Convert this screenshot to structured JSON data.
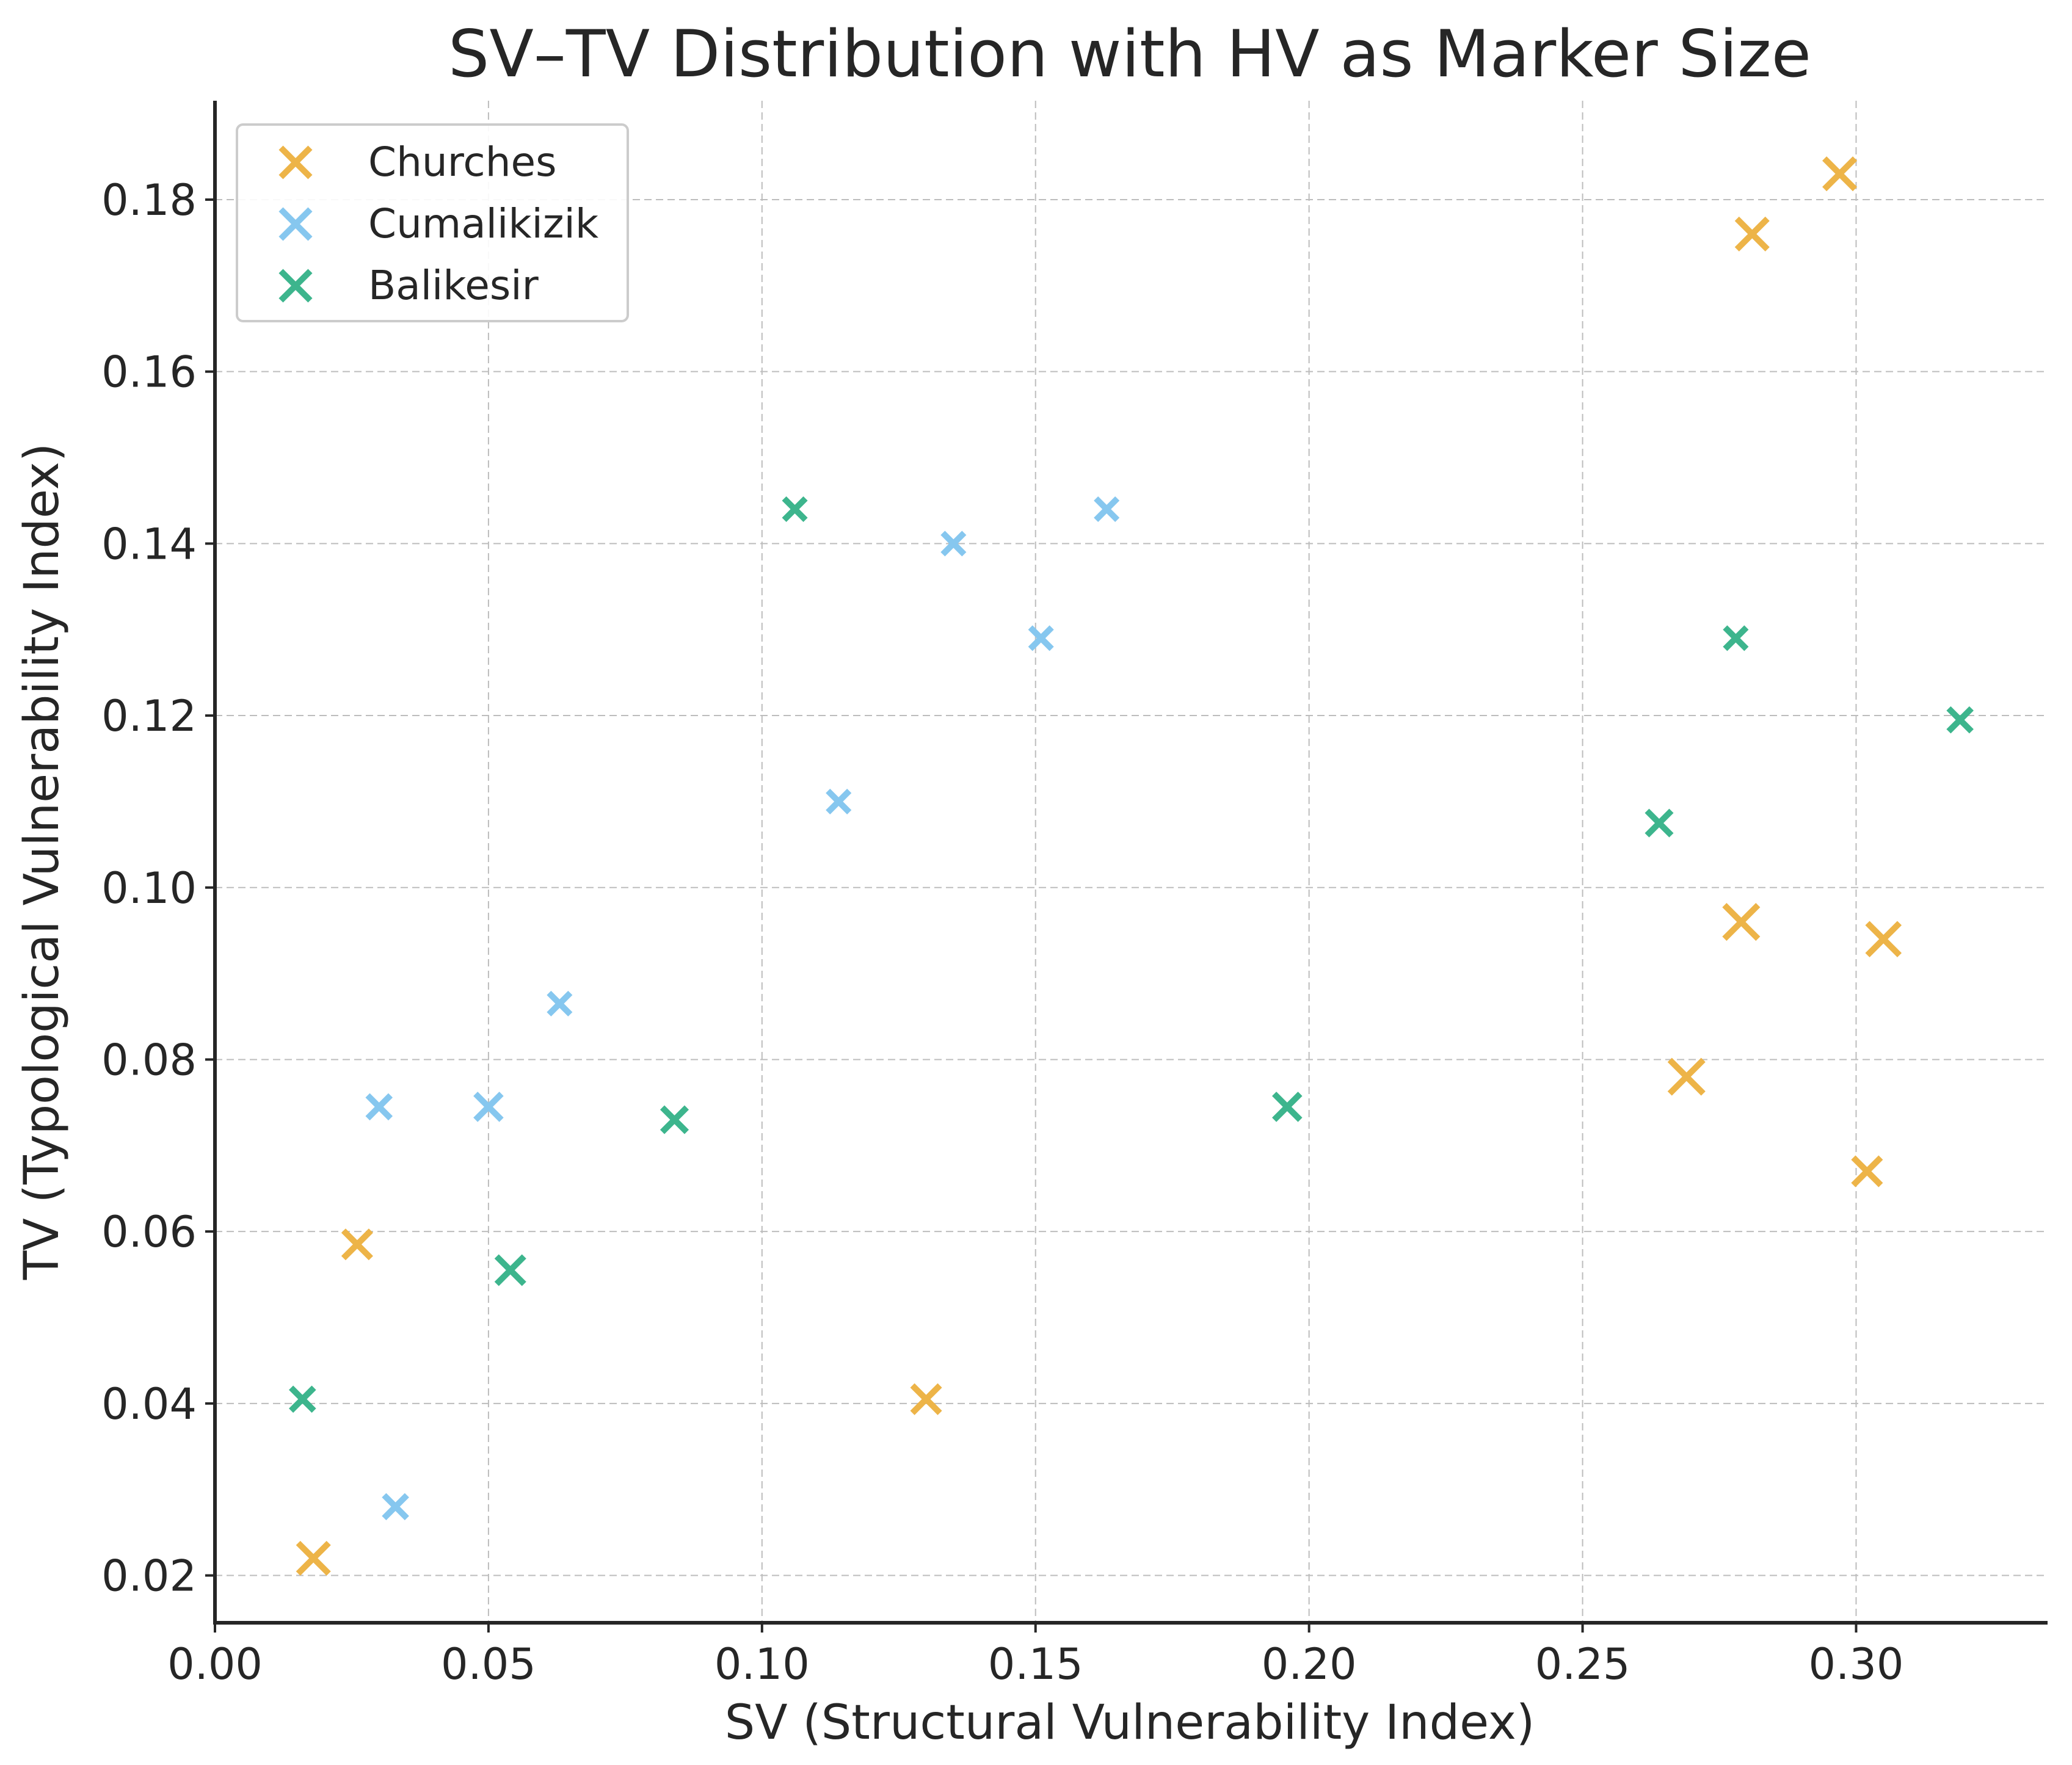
{
  "chart_data": {
    "type": "scatter",
    "title": "SV–TV Distribution with HV as Marker Size",
    "xlabel": "SV (Structural Vulnerability Index)",
    "ylabel": "TV (Typological Vulnerability Index)",
    "xlim": [
      0.0,
      0.335
    ],
    "ylim": [
      0.0145,
      0.1915
    ],
    "xticks": [
      "0.00",
      "0.05",
      "0.10",
      "0.15",
      "0.20",
      "0.25",
      "0.30"
    ],
    "yticks": [
      "0.02",
      "0.04",
      "0.06",
      "0.08",
      "0.10",
      "0.12",
      "0.14",
      "0.16",
      "0.18"
    ],
    "grid": true,
    "legend_position": "top-left",
    "series": [
      {
        "name": "Churches",
        "color": "#EDB448",
        "points": [
          {
            "x": 0.297,
            "y": 0.183,
            "size": 1.0
          },
          {
            "x": 0.281,
            "y": 0.176,
            "size": 1.0
          },
          {
            "x": 0.279,
            "y": 0.096,
            "size": 1.1
          },
          {
            "x": 0.305,
            "y": 0.094,
            "size": 1.05
          },
          {
            "x": 0.269,
            "y": 0.078,
            "size": 1.1
          },
          {
            "x": 0.302,
            "y": 0.067,
            "size": 0.9
          },
          {
            "x": 0.026,
            "y": 0.0585,
            "size": 0.9
          },
          {
            "x": 0.13,
            "y": 0.0405,
            "size": 0.9
          },
          {
            "x": 0.018,
            "y": 0.022,
            "size": 1.0
          }
        ]
      },
      {
        "name": "Cumalikizik",
        "color": "#86C7EF",
        "points": [
          {
            "x": 0.163,
            "y": 0.144,
            "size": 0.7
          },
          {
            "x": 0.135,
            "y": 0.14,
            "size": 0.7
          },
          {
            "x": 0.151,
            "y": 0.129,
            "size": 0.7
          },
          {
            "x": 0.114,
            "y": 0.11,
            "size": 0.7
          },
          {
            "x": 0.063,
            "y": 0.0865,
            "size": 0.7
          },
          {
            "x": 0.03,
            "y": 0.0745,
            "size": 0.75
          },
          {
            "x": 0.05,
            "y": 0.0745,
            "size": 0.85
          },
          {
            "x": 0.033,
            "y": 0.028,
            "size": 0.75
          }
        ]
      },
      {
        "name": "Balikesir",
        "color": "#3DB58D",
        "points": [
          {
            "x": 0.106,
            "y": 0.144,
            "size": 0.7
          },
          {
            "x": 0.278,
            "y": 0.129,
            "size": 0.7
          },
          {
            "x": 0.319,
            "y": 0.1195,
            "size": 0.75
          },
          {
            "x": 0.264,
            "y": 0.1075,
            "size": 0.8
          },
          {
            "x": 0.196,
            "y": 0.0745,
            "size": 0.85
          },
          {
            "x": 0.084,
            "y": 0.073,
            "size": 0.8
          },
          {
            "x": 0.054,
            "y": 0.0555,
            "size": 0.9
          },
          {
            "x": 0.016,
            "y": 0.0405,
            "size": 0.75
          }
        ]
      }
    ]
  }
}
